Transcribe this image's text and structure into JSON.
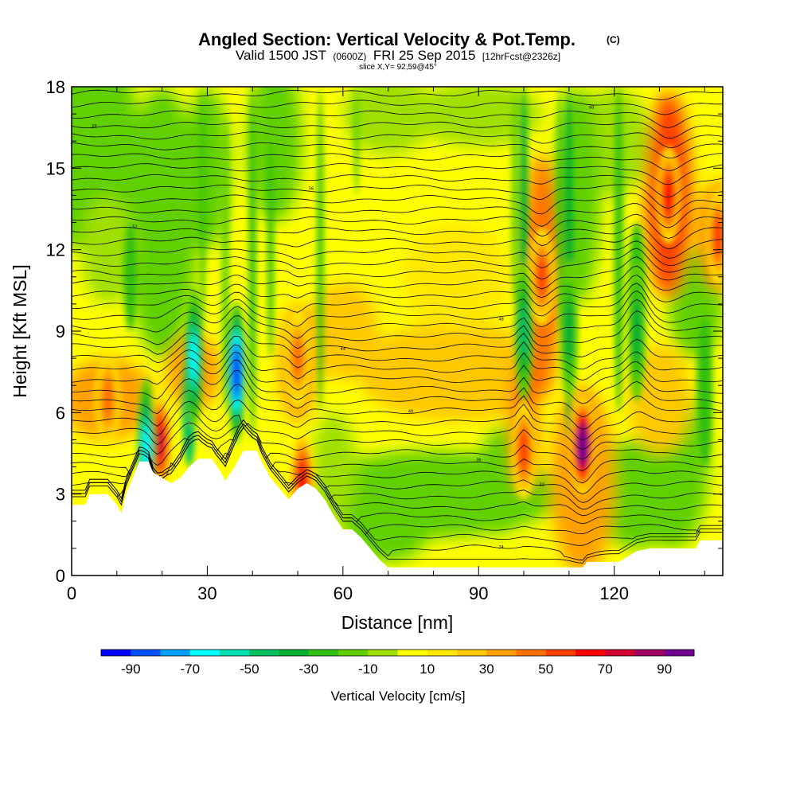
{
  "header": {
    "title": "Angled Section: Vertical Velocity & Pot.Temp.",
    "title_unit": "(C)",
    "valid_prefix": "Valid 1500 JST",
    "valid_utc": "(0600Z)",
    "valid_date": "FRI 25 Sep 2015",
    "forecast": "[12hrFcst@2326z]",
    "slice": "slice X,Y= 92,59@45°"
  },
  "chart_data": {
    "type": "heatmap",
    "xlabel": "Distance [nm]",
    "ylabel": "Height [Kft MSL]",
    "xlim": [
      0,
      144
    ],
    "ylim": [
      0,
      18
    ],
    "x_ticks": [
      0,
      30,
      60,
      90,
      120
    ],
    "y_ticks": [
      0,
      3,
      6,
      9,
      12,
      15,
      18
    ],
    "colorbar": {
      "label": "Vertical Velocity [cm/s]",
      "tick_labels": [
        "-90",
        "-70",
        "-50",
        "-30",
        "-10",
        "10",
        "30",
        "50",
        "70",
        "90"
      ],
      "levels": [
        -100,
        -90,
        -80,
        -70,
        -60,
        -50,
        -40,
        -30,
        -20,
        -10,
        0,
        10,
        20,
        30,
        40,
        50,
        60,
        70,
        80,
        90,
        100
      ],
      "colors": [
        "#0000ff",
        "#0050ff",
        "#00a0ff",
        "#00ffff",
        "#00e0b0",
        "#00c060",
        "#00b030",
        "#30c010",
        "#60d000",
        "#a0e000",
        "#ffff00",
        "#ffe800",
        "#ffc800",
        "#ffa000",
        "#ff7000",
        "#ff4000",
        "#ff0000",
        "#d00030",
        "#a00060",
        "#700090"
      ]
    },
    "terrain": [
      [
        0,
        2.6
      ],
      [
        3,
        2.6
      ],
      [
        4,
        3.0
      ],
      [
        8,
        3.0
      ],
      [
        10,
        2.6
      ],
      [
        11,
        2.3
      ],
      [
        12,
        3.0
      ],
      [
        13,
        3.4
      ],
      [
        14,
        3.8
      ],
      [
        15,
        4.2
      ],
      [
        17,
        4.2
      ],
      [
        18,
        3.8
      ],
      [
        20,
        3.6
      ],
      [
        22,
        3.4
      ],
      [
        24,
        3.6
      ],
      [
        26,
        4.0
      ],
      [
        28,
        4.3
      ],
      [
        31,
        4.3
      ],
      [
        33,
        3.8
      ],
      [
        34,
        3.5
      ],
      [
        36,
        4.0
      ],
      [
        38,
        4.6
      ],
      [
        41,
        4.6
      ],
      [
        42,
        4.2
      ],
      [
        44,
        3.6
      ],
      [
        46,
        3.2
      ],
      [
        48,
        2.8
      ],
      [
        50,
        3.2
      ],
      [
        52,
        3.4
      ],
      [
        54,
        3.2
      ],
      [
        56,
        2.8
      ],
      [
        58,
        2.2
      ],
      [
        60,
        1.7
      ],
      [
        62,
        1.7
      ],
      [
        64,
        1.4
      ],
      [
        66,
        1.0
      ],
      [
        68,
        0.6
      ],
      [
        70,
        0.3
      ],
      [
        80,
        0.3
      ],
      [
        90,
        0.3
      ],
      [
        100,
        0.3
      ],
      [
        113,
        0.3
      ],
      [
        114,
        0.5
      ],
      [
        121,
        0.5
      ],
      [
        125,
        0.9
      ],
      [
        128,
        1.0
      ],
      [
        138,
        1.0
      ],
      [
        139,
        1.3
      ],
      [
        144,
        1.3
      ]
    ],
    "isentrope_count": 46,
    "isentrope_labels": [
      "60",
      "56",
      "52",
      "48",
      "44",
      "40",
      "36",
      "32",
      "28",
      "24",
      "20"
    ],
    "updraft_cores": [
      {
        "x": 113,
        "y": 4.8,
        "w_max": 100
      },
      {
        "x": 19.5,
        "y": 4.9,
        "w_max": 70
      },
      {
        "x": 100,
        "y": 4.6,
        "w_max": 50
      },
      {
        "x": 104,
        "y": 11.0,
        "w_max": 50
      },
      {
        "x": 132,
        "y": 14.0,
        "w_max": 60
      },
      {
        "x": 143,
        "y": 12.5,
        "w_max": 50
      },
      {
        "x": 8,
        "y": 6.5,
        "w_max": 40
      },
      {
        "x": 50,
        "y": 8.0,
        "w_max": 40
      },
      {
        "x": 51,
        "y": 3.5,
        "w_max": 60
      }
    ],
    "downdraft_cores": [
      {
        "x": 36.5,
        "y": 7.5,
        "w_min": -90
      },
      {
        "x": 27,
        "y": 8.0,
        "w_min": -60
      },
      {
        "x": 16.5,
        "y": 4.7,
        "w_min": -60
      },
      {
        "x": 100,
        "y": 9.0,
        "w_min": -40
      },
      {
        "x": 110,
        "y": 9.0,
        "w_min": -30
      },
      {
        "x": 125,
        "y": 9.0,
        "w_min": -30
      }
    ]
  }
}
